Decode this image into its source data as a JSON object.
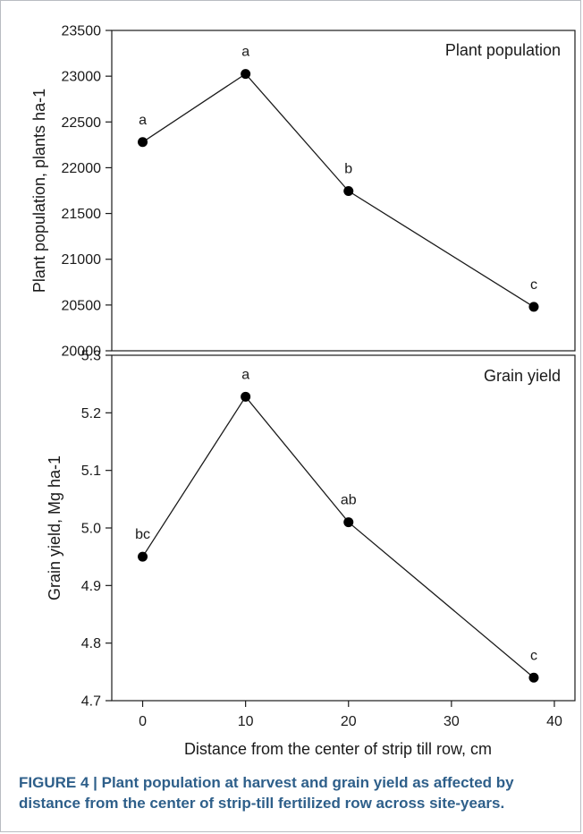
{
  "chart_data": [
    {
      "type": "line",
      "title": "Plant population",
      "xlabel": "",
      "ylabel": "Plant population, plants ha-1",
      "ylim": [
        20000,
        23500
      ],
      "yticks": [
        20000,
        20500,
        21000,
        21500,
        22000,
        22500,
        23000,
        23500
      ],
      "xlim": [
        -3,
        42
      ],
      "points": [
        {
          "x": 0,
          "y": 22280,
          "label": "a"
        },
        {
          "x": 10,
          "y": 23025,
          "label": "a"
        },
        {
          "x": 20,
          "y": 21745,
          "label": "b"
        },
        {
          "x": 38,
          "y": 20480,
          "label": "c"
        }
      ]
    },
    {
      "type": "line",
      "title": "Grain yield",
      "xlabel": "Distance from the center of strip till row, cm",
      "ylabel": "Grain yield, Mg ha-1",
      "ylim": [
        4.7,
        5.3
      ],
      "yticks": [
        4.7,
        4.8,
        4.9,
        5.0,
        5.1,
        5.2,
        5.3
      ],
      "ytick_labels": [
        "4.7",
        "4.8",
        "4.9",
        "5.0",
        "5.1",
        "5.2",
        "5.3"
      ],
      "xlim": [
        -3,
        42
      ],
      "xticks": [
        0,
        10,
        20,
        30,
        40
      ],
      "points": [
        {
          "x": 0,
          "y": 4.95,
          "label": "bc"
        },
        {
          "x": 10,
          "y": 5.228,
          "label": "a"
        },
        {
          "x": 20,
          "y": 5.01,
          "label": "ab"
        },
        {
          "x": 38,
          "y": 4.74,
          "label": "c"
        }
      ]
    }
  ],
  "caption": "FIGURE 4 | Plant population at harvest and grain yield as affected by distance from the center of strip-till fertilized row across site-years."
}
